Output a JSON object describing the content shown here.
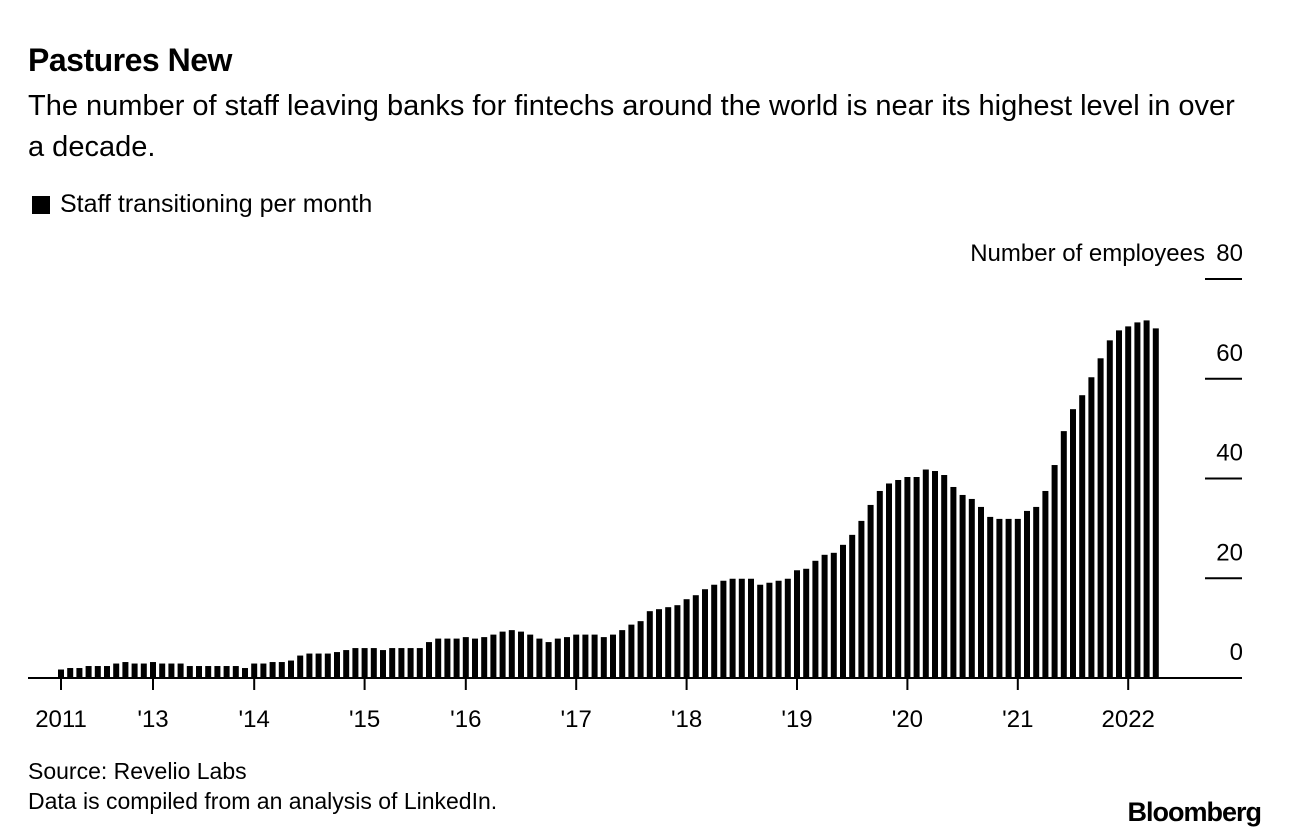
{
  "title": "Pastures New",
  "subtitle": "The number of staff leaving banks for fintechs around the world is near its highest level in over a decade.",
  "legend": {
    "label": "Staff transitioning per month",
    "swatch_color": "#000000"
  },
  "source": "Source: Revelio Labs",
  "note": "Data is compiled from an analysis of LinkedIn.",
  "logo": "Bloomberg",
  "chart_data": {
    "type": "bar",
    "title": "Pastures New",
    "ylabel": "Number of employees",
    "ylim": [
      0,
      80
    ],
    "yticks": [
      0,
      20,
      40,
      60,
      80
    ],
    "y_axis_side": "right",
    "grid": false,
    "legend_position": "top-left",
    "bar_color": "#000000",
    "xticks": [
      {
        "index": 0,
        "label": "2011"
      },
      {
        "index": 10,
        "label": "'13"
      },
      {
        "index": 21,
        "label": "'14"
      },
      {
        "index": 33,
        "label": "'15"
      },
      {
        "index": 44,
        "label": "'16"
      },
      {
        "index": 56,
        "label": "'17"
      },
      {
        "index": 68,
        "label": "'18"
      },
      {
        "index": 80,
        "label": "'19"
      },
      {
        "index": 92,
        "label": "'20"
      },
      {
        "index": 104,
        "label": "'21"
      },
      {
        "index": 116,
        "label": "2022"
      }
    ],
    "series": [
      {
        "name": "Staff transitioning per month",
        "values": [
          1.7,
          2,
          2,
          2.4,
          2.4,
          2.4,
          2.9,
          3.2,
          2.9,
          2.9,
          3.2,
          2.9,
          2.9,
          2.9,
          2.4,
          2.4,
          2.4,
          2.4,
          2.4,
          2.4,
          2,
          2.9,
          2.9,
          3.2,
          3.2,
          3.5,
          4.5,
          4.9,
          4.9,
          4.9,
          5.2,
          5.6,
          6,
          6,
          6,
          5.6,
          6,
          6,
          6,
          6,
          7.2,
          7.9,
          7.9,
          7.9,
          8.2,
          7.9,
          8.2,
          8.7,
          9.3,
          9.6,
          9.3,
          8.7,
          7.9,
          7.2,
          7.9,
          8.2,
          8.7,
          8.7,
          8.7,
          8.2,
          8.7,
          9.6,
          10.7,
          11.4,
          13.4,
          13.8,
          14.2,
          14.6,
          15.8,
          16.6,
          17.8,
          18.7,
          19.5,
          19.9,
          19.9,
          19.9,
          18.7,
          19.1,
          19.5,
          19.9,
          21.6,
          21.9,
          23.5,
          24.7,
          25.1,
          26.7,
          28.7,
          31.5,
          34.7,
          37.5,
          39,
          39.7,
          40.3,
          40.3,
          41.8,
          41.5,
          40.7,
          38.3,
          36.7,
          35.9,
          34.3,
          32.3,
          31.9,
          31.9,
          31.9,
          33.5,
          34.3,
          37.5,
          42.7,
          49.5,
          53.9,
          56.7,
          60.3,
          64.1,
          67.7,
          69.7,
          70.5,
          71.3,
          71.7,
          70.1
        ]
      }
    ]
  }
}
